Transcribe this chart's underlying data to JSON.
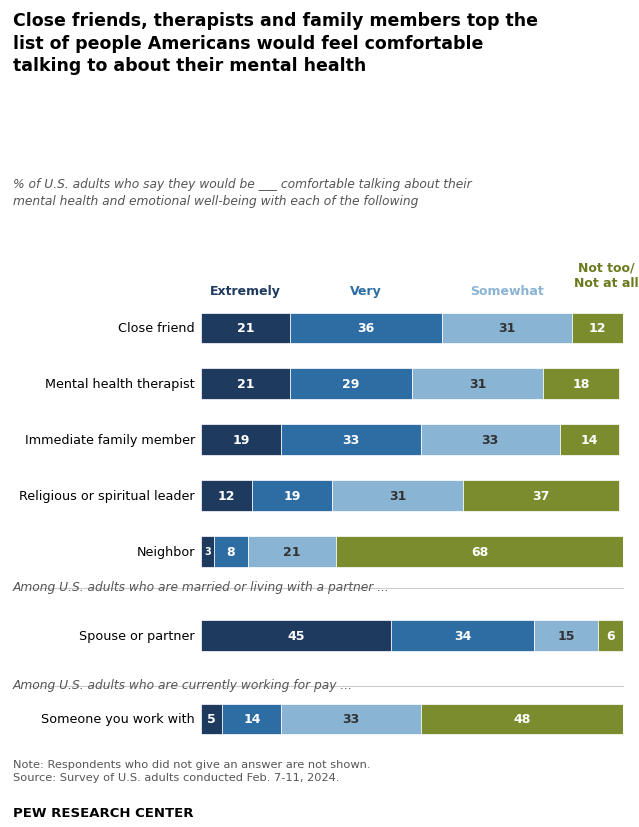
{
  "title": "Close friends, therapists and family members top the\nlist of people Americans would feel comfortable\ntalking to about their mental health",
  "subtitle": "% of U.S. adults who say they would be ___ comfortable talking about their\nmental health and emotional well-being with each of the following",
  "categories": [
    "Close friend",
    "Mental health therapist",
    "Immediate family member",
    "Religious or spiritual leader",
    "Neighbor"
  ],
  "special_label_1": "Among U.S. adults who are married or living with a partner ...",
  "special_label_2": "Among U.S. adults who are currently working for pay ...",
  "data": [
    [
      21,
      36,
      31,
      12
    ],
    [
      21,
      29,
      31,
      18
    ],
    [
      19,
      33,
      33,
      14
    ],
    [
      12,
      19,
      31,
      37
    ],
    [
      3,
      8,
      21,
      68
    ]
  ],
  "data_special_1": [
    [
      45,
      34,
      15,
      6
    ]
  ],
  "data_special_2": [
    [
      5,
      14,
      33,
      48
    ]
  ],
  "colors": [
    "#1e3a5f",
    "#2e6da4",
    "#8ab4d4",
    "#7a8c2e"
  ],
  "header_labels": [
    "Extremely",
    "Very",
    "Somewhat",
    "Not too/\nNot at all"
  ],
  "header_colors": [
    "#1e3a5f",
    "#2e6da4",
    "#8ab4d4",
    "#6b7a1e"
  ],
  "note": "Note: Respondents who did not give an answer are not shown.\nSource: Survey of U.S. adults conducted Feb. 7-11, 2024.",
  "footer": "PEW RESEARCH CENTER",
  "bar_height": 0.55,
  "background_color": "#ffffff"
}
